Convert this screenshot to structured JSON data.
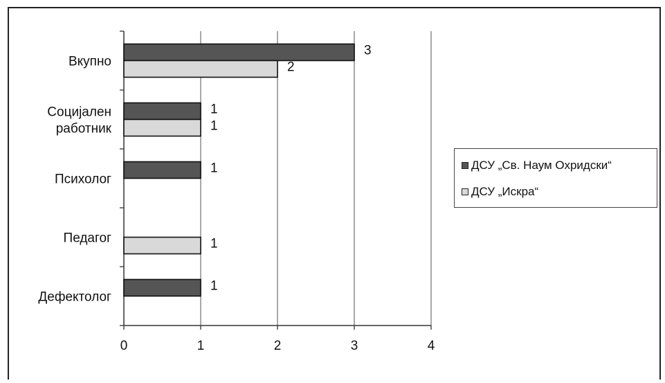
{
  "chart_data": {
    "type": "bar",
    "orientation": "horizontal",
    "categories": [
      "Вкупно",
      "Социјален работник",
      "Психолог",
      "Педагог",
      "Дефектолог"
    ],
    "category_label_lines": [
      [
        "Вкупно"
      ],
      [
        "Социјален",
        "работник"
      ],
      [
        "Психолог"
      ],
      [
        "Педагог"
      ],
      [
        "Дефектолог"
      ]
    ],
    "series": [
      {
        "name": "ДСУ „Св. Наум Охридски“",
        "color": "#555555",
        "values": [
          3,
          1,
          1,
          null,
          1
        ]
      },
      {
        "name": "ДСУ „Искра“",
        "color": "#d9d9d9",
        "values": [
          2,
          1,
          null,
          1,
          null
        ]
      }
    ],
    "data_labels": [
      [
        "3",
        "1",
        "1",
        "",
        "1"
      ],
      [
        "2",
        "1",
        "",
        "1",
        ""
      ]
    ],
    "xlim": [
      0,
      4
    ],
    "xticks": [
      0,
      1,
      2,
      3,
      4
    ],
    "xtick_labels": [
      "0",
      "1",
      "2",
      "3",
      "4"
    ],
    "grid": "vertical",
    "legend_position": "right"
  },
  "legend": {
    "items": [
      {
        "label": "ДСУ „Св. Наум Охридски“",
        "color": "#555555"
      },
      {
        "label": "ДСУ „Искра“",
        "color": "#d9d9d9"
      }
    ]
  }
}
